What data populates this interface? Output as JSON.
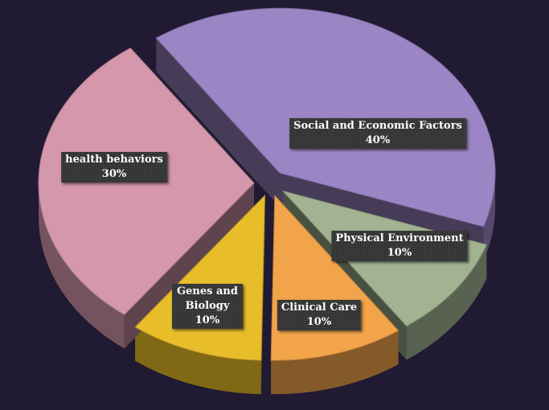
{
  "chart_data": {
    "type": "pie",
    "title": "",
    "slices": [
      {
        "label": "Social and Economic Factors",
        "value": 40,
        "display": "40%",
        "color": "#9c85c4"
      },
      {
        "label": "Physical Environment",
        "value": 10,
        "display": "10%",
        "color": "#a1b391"
      },
      {
        "label": "Clinical Care",
        "value": 10,
        "display": "10%",
        "color": "#f2a44a"
      },
      {
        "label": "Genes and Biology",
        "value": 10,
        "display": "10%",
        "color": "#e8bd2a"
      },
      {
        "label": "health behaviors",
        "value": 30,
        "display": "30%",
        "color": "#d497ab"
      }
    ],
    "legend": "none",
    "style": "3d-exploded"
  }
}
